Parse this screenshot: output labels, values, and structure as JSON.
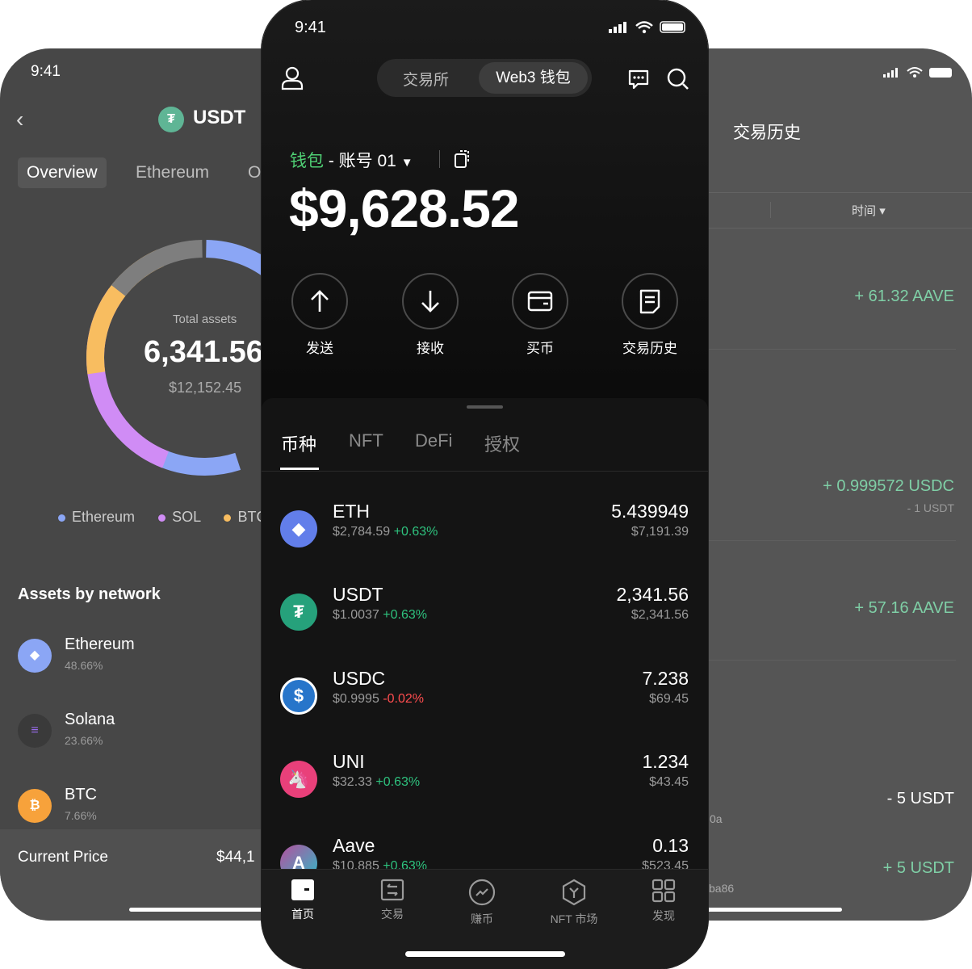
{
  "left_screen": {
    "time": "9:41",
    "title": "USDT",
    "tabs": [
      "Overview",
      "Ethereum",
      "O"
    ],
    "chart_center": {
      "label": "Total assets",
      "value": "6,341.56",
      "usd": "$12,152.45"
    },
    "chart_data": {
      "type": "pie",
      "style": "donut",
      "series": [
        {
          "name": "Ethereum",
          "color": "#8ba6f5"
        },
        {
          "name": "SOL",
          "color": "#d08cf5"
        },
        {
          "name": "BTC",
          "color": "#f8bd60"
        },
        {
          "name": "Other",
          "color": "#7e7e7e"
        }
      ]
    },
    "legend": [
      "Ethereum",
      "SOL",
      "BTC"
    ],
    "section_title": "Assets by network",
    "networks": [
      {
        "name": "Ethereum",
        "pct": "48.66%"
      },
      {
        "name": "Solana",
        "pct": "23.66%"
      },
      {
        "name": "BTC",
        "pct": "7.66%"
      }
    ],
    "current_price_label": "Current Price",
    "current_price_value": "$44,1"
  },
  "center_screen": {
    "time": "9:41",
    "segments": [
      "交易所",
      "Web3 钱包"
    ],
    "wallet_label": "钱包",
    "account": "- 账号 01",
    "balance": "$9,628.52",
    "actions": [
      "发送",
      "接收",
      "买币",
      "交易历史"
    ],
    "tabs": [
      "币种",
      "NFT",
      "DeFi",
      "授权"
    ],
    "tokens": [
      {
        "symbol": "ETH",
        "price": "$2,784.59",
        "change": "+0.63%",
        "amount": "5.439949",
        "value": "$7,191.39"
      },
      {
        "symbol": "USDT",
        "price": "$1.0037",
        "change": "+0.63%",
        "amount": "2,341.56",
        "value": "$2,341.56"
      },
      {
        "symbol": "USDC",
        "price": "$0.9995",
        "change": "-0.02%",
        "amount": "7.238",
        "value": "$69.45"
      },
      {
        "symbol": "UNI",
        "price": "$32.33",
        "change": "+0.63%",
        "amount": "1.234",
        "value": "$43.45"
      },
      {
        "symbol": "Aave",
        "price": "$10.885",
        "change": "+0.63%",
        "amount": "0.13",
        "value": "$523.45"
      }
    ],
    "nav": [
      "首页",
      "交易",
      "赚币",
      "NFT 市场",
      "发现"
    ]
  },
  "right_screen": {
    "title": "交易历史",
    "filter": "时间",
    "transactions": [
      {
        "amount": "+ 61.32 AAVE"
      },
      {
        "amount": "+ 0.999572 USDC",
        "sub": "- 1 USDT"
      },
      {
        "amount": "+ 57.16 AAVE"
      },
      {
        "amount": "- 5 USDT",
        "hash": "0a"
      },
      {
        "amount": "+ 5 USDT",
        "hash": "ba86"
      }
    ]
  }
}
